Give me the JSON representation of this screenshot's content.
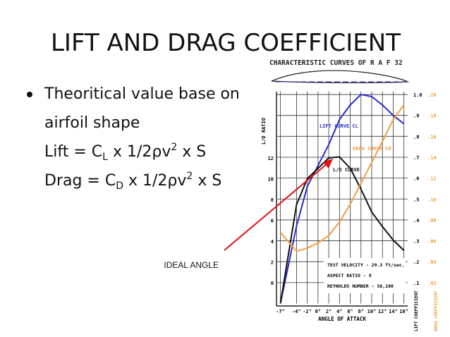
{
  "slide": {
    "title": "LIFT AND DRAG COEFFICIENT",
    "bullet": {
      "lines": [
        [
          "Theoritical value base on"
        ],
        [
          "airfoil shape"
        ],
        [
          "Lift   = C",
          "L",
          " x 1/2ρv",
          "2",
          " x S"
        ],
        [
          "Drag = C",
          "D",
          " x 1/2ρv",
          "2",
          " x S"
        ]
      ]
    },
    "annotation": "IDEAL ANGLE"
  },
  "chart_data": {
    "type": "line",
    "title": "CHARACTERISTIC CURVES OF R A F 32",
    "x_label": "ANGLE OF ATTACK",
    "y_label": "L/D RATIO",
    "y2_label": "LIFT COEFFICIENT",
    "y3_label": "DRAG COEFFICIENT",
    "curve_labels": [
      "LIFT CURVE CL",
      "DRAG CURVE CD",
      "L/D CURVE"
    ],
    "notes": [
      "TEST VELOCITY - 29.3 ft/sec.",
      "ASPECT RATIO - 9",
      "REYNOLDS NUMBER - 56,100"
    ],
    "x": [
      -7,
      -4,
      -2,
      0,
      2,
      4,
      6,
      8,
      10,
      12,
      14,
      16
    ],
    "xlim": [
      -7.6,
      16.7
    ],
    "xticks": [
      {
        "value": -7,
        "label": "-7°"
      },
      {
        "value": -4,
        "label": "-4°"
      },
      {
        "value": -2,
        "label": "-2°"
      },
      {
        "value": 0,
        "label": "0°"
      },
      {
        "value": 2,
        "label": "2°"
      },
      {
        "value": 4,
        "label": "4°"
      },
      {
        "value": 6,
        "label": "6°"
      },
      {
        "value": 8,
        "label": "8°"
      },
      {
        "value": 10,
        "label": "10°"
      },
      {
        "value": 12,
        "label": "12°"
      },
      {
        "value": 14,
        "label": "14°"
      },
      {
        "value": 16,
        "label": "16°"
      }
    ],
    "ylim": [
      -2,
      18.4
    ],
    "yticks": [
      0,
      2,
      4,
      6,
      8,
      10,
      12
    ],
    "y2lim": [
      0,
      1.015
    ],
    "y2ticks": [
      {
        "value": 0.1,
        "label": ".1"
      },
      {
        "value": 0.2,
        "label": ".2"
      },
      {
        "value": 0.3,
        "label": ".3"
      },
      {
        "value": 0.4,
        "label": ".4"
      },
      {
        "value": 0.5,
        "label": ".5"
      },
      {
        "value": 0.6,
        "label": ".6"
      },
      {
        "value": 0.7,
        "label": ".7"
      },
      {
        "value": 0.8,
        "label": ".8"
      },
      {
        "value": 0.9,
        "label": ".9"
      },
      {
        "value": 1.0,
        "label": "1.0"
      }
    ],
    "y3lim": [
      0,
      0.203
    ],
    "y3ticks": [
      {
        "value": 0.02,
        "label": ".02"
      },
      {
        "value": 0.04,
        "label": ".04"
      },
      {
        "value": 0.06,
        "label": ".06"
      },
      {
        "value": 0.08,
        "label": ".08"
      },
      {
        "value": 0.1,
        "label": ".10"
      },
      {
        "value": 0.12,
        "label": ".12"
      },
      {
        "value": 0.14,
        "label": ".14"
      },
      {
        "value": 0.16,
        "label": ".16"
      },
      {
        "value": 0.18,
        "label": ".18"
      },
      {
        "value": 0.2,
        "label": ".20"
      }
    ],
    "grid": true,
    "series": [
      {
        "name": "LIFT",
        "color": "#2a2acc",
        "axis": "y2",
        "values": [
          0,
          0.37,
          0.56,
          0.66,
          0.76,
          0.88,
          0.95,
          1.0,
          0.99,
          0.95,
          0.9,
          0.86
        ]
      },
      {
        "name": "L/D",
        "color": "#111111",
        "axis": "y",
        "values": [
          -2,
          7.5,
          10,
          11,
          12,
          12.1,
          11,
          9,
          6.8,
          5.4,
          4.1,
          3.1
        ]
      },
      {
        "name": "DRAG",
        "color": "#f0a040",
        "axis": "y3",
        "values": [
          0.068,
          0.05,
          0.053,
          0.058,
          0.065,
          0.078,
          0.095,
          0.115,
          0.135,
          0.155,
          0.176,
          0.19
        ]
      }
    ]
  }
}
